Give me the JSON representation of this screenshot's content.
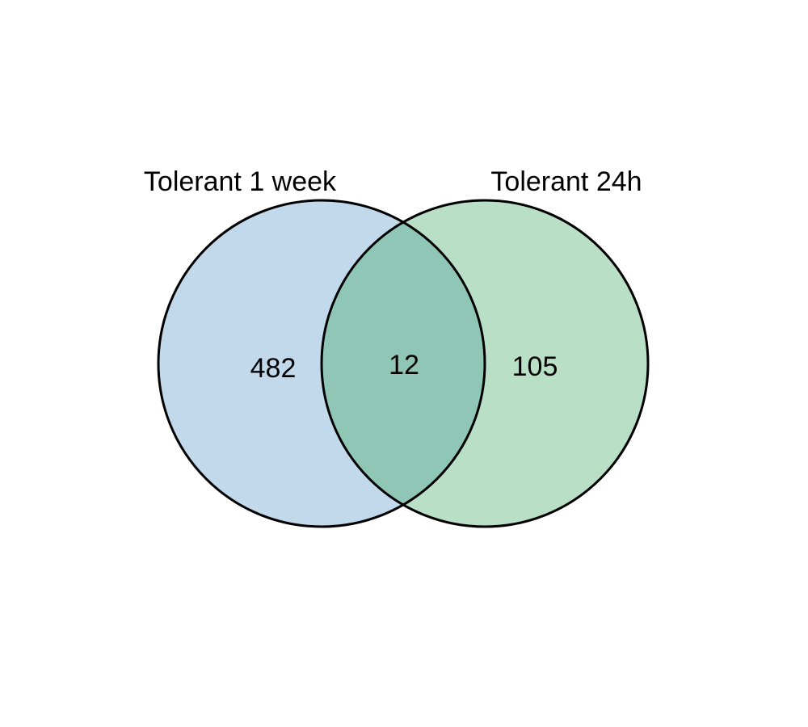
{
  "venn": {
    "sets": [
      {
        "label": "Tolerant 1 week",
        "only_count": "482",
        "fill": "#c1d9ea"
      },
      {
        "label": "Tolerant 24h",
        "only_count": "105",
        "fill": "#b9e0c6"
      }
    ],
    "intersection": {
      "count": "12",
      "fill": "#8fc6b6"
    },
    "stroke": "#000000"
  }
}
